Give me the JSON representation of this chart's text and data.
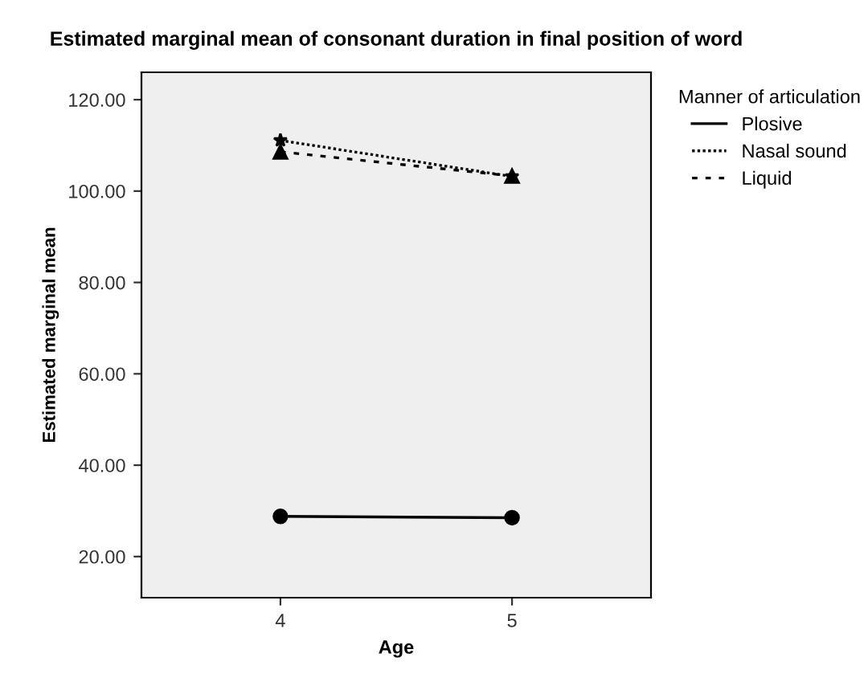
{
  "chart_data": {
    "type": "line",
    "title": "Estimated marginal mean of consonant duration in final position of word",
    "xlabel": "Age",
    "ylabel": "Estimated marginal mean",
    "legend_title": "Manner of articulation",
    "categories": [
      "4",
      "5"
    ],
    "series": [
      {
        "name": "Plosive",
        "color": "#000000",
        "values": [
          28.8,
          28.5
        ],
        "marker": "circle",
        "line_style": "solid"
      },
      {
        "name": "Nasal sound",
        "color": "#000000",
        "values": [
          111.1,
          103.2
        ],
        "marker": "star",
        "line_style": "dotted"
      },
      {
        "name": "Liquid",
        "color": "#000000",
        "values": [
          108.6,
          103.3
        ],
        "marker": "triangle",
        "line_style": "dashed"
      }
    ],
    "ylim": [
      11,
      126
    ],
    "yticks": [
      {
        "value": 20,
        "label": "20.00"
      },
      {
        "value": 40,
        "label": "40.00"
      },
      {
        "value": 60,
        "label": "60.00"
      },
      {
        "value": 80,
        "label": "80.00"
      },
      {
        "value": 100,
        "label": "100.00"
      },
      {
        "value": 120,
        "label": "120.00"
      }
    ],
    "grid": false,
    "legend": "right"
  }
}
